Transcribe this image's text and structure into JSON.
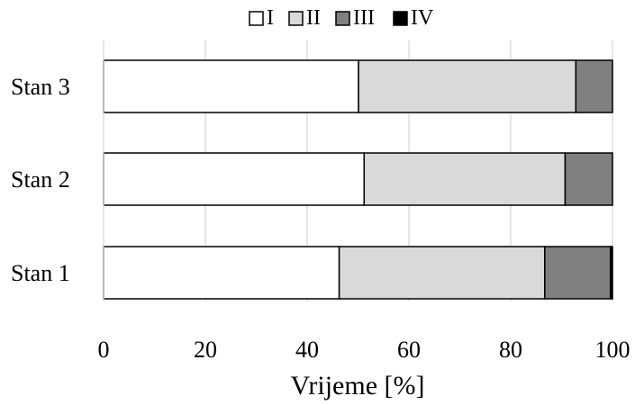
{
  "chart_data": {
    "type": "bar",
    "orientation": "horizontal",
    "stacked": true,
    "title": "",
    "xlabel": "Vrijeme [%]",
    "ylabel": "",
    "xlim": [
      0,
      100
    ],
    "x_ticks": [
      0,
      20,
      40,
      60,
      80,
      100
    ],
    "grid": "vertical",
    "legend_position": "top",
    "categories": [
      "Stan 1",
      "Stan 2",
      "Stan 3"
    ],
    "series": [
      {
        "name": "I",
        "color": "#ffffff",
        "values": [
          46.3,
          51.2,
          50.1
        ]
      },
      {
        "name": "II",
        "color": "#d9d9d9",
        "values": [
          40.4,
          39.5,
          42.7
        ]
      },
      {
        "name": "III",
        "color": "#808080",
        "values": [
          12.9,
          9.3,
          7.2
        ]
      },
      {
        "name": "IV",
        "color": "#000000",
        "values": [
          0.4,
          0.0,
          0.0
        ]
      }
    ]
  }
}
